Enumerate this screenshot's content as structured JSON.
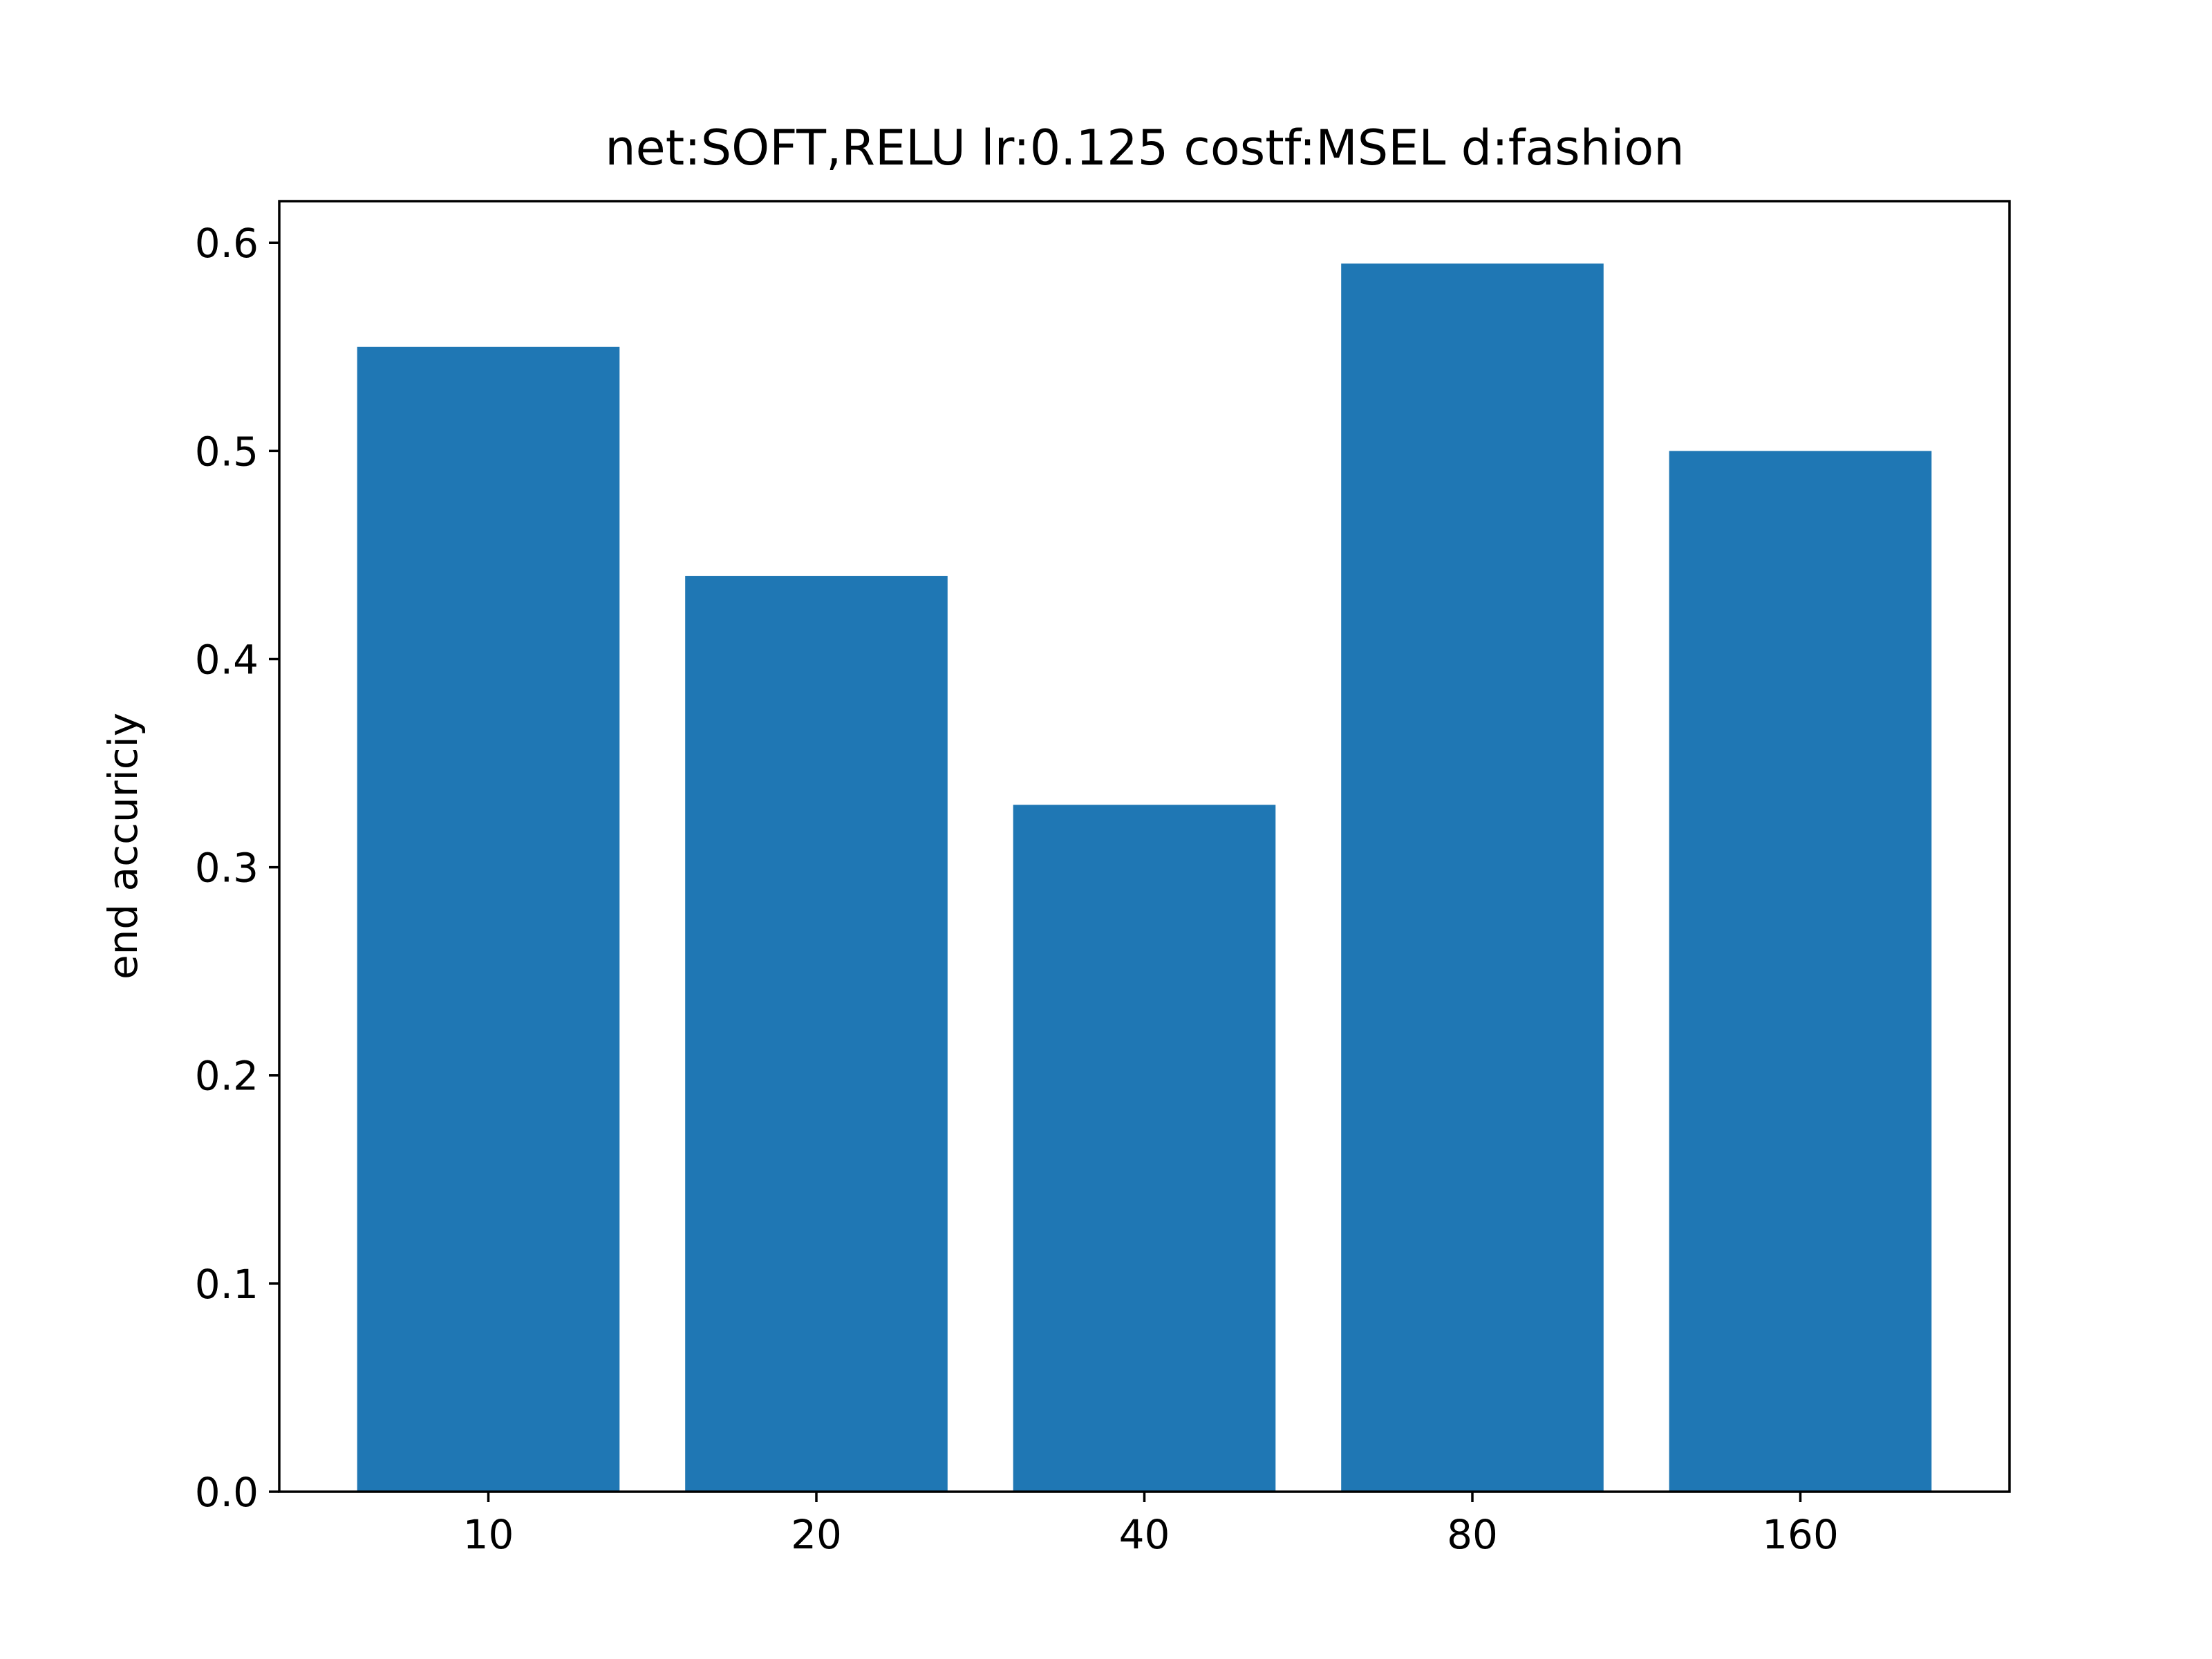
{
  "chart_data": {
    "type": "bar",
    "title": "net:SOFT,RELU lr:0.125 costf:MSEL d:fashion",
    "xlabel": "",
    "ylabel": "end accuriciy",
    "categories": [
      "10",
      "20",
      "40",
      "80",
      "160"
    ],
    "values": [
      0.55,
      0.44,
      0.33,
      0.59,
      0.5
    ],
    "ylim": [
      0,
      0.62
    ],
    "yticks": [
      0.0,
      0.1,
      0.2,
      0.3,
      0.4,
      0.5,
      0.6
    ],
    "ytick_labels": [
      "0.0",
      "0.1",
      "0.2",
      "0.3",
      "0.4",
      "0.5",
      "0.6"
    ],
    "bar_color": "#1f77b4",
    "grid": false,
    "legend": "none"
  }
}
